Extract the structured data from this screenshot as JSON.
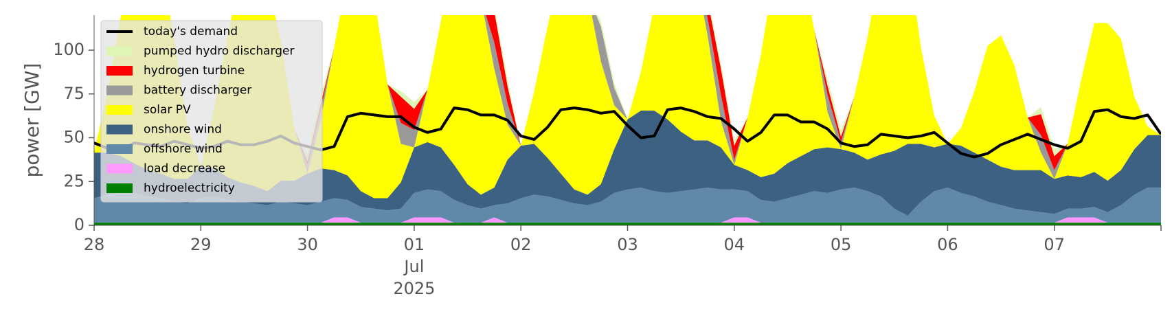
{
  "chart_data": {
    "type": "area",
    "ylabel": "power [GW]",
    "ylim": [
      0,
      120
    ],
    "yticks": [
      0,
      25,
      50,
      75,
      100
    ],
    "xlim": [
      "2025-06-28T00:00",
      "2025-07-08T00:00"
    ],
    "xticks": [
      {
        "x": "2025-06-28T00:00",
        "label": "28"
      },
      {
        "x": "2025-06-29T00:00",
        "label": "29"
      },
      {
        "x": "2025-06-30T00:00",
        "label": "30"
      },
      {
        "x": "2025-07-01T00:00",
        "label": "01",
        "sub1": "Jul",
        "sub2": "2025"
      },
      {
        "x": "2025-07-02T00:00",
        "label": "02"
      },
      {
        "x": "2025-07-03T00:00",
        "label": "03"
      },
      {
        "x": "2025-07-04T00:00",
        "label": "04"
      },
      {
        "x": "2025-07-05T00:00",
        "label": "05"
      },
      {
        "x": "2025-07-06T00:00",
        "label": "06"
      },
      {
        "x": "2025-07-07T00:00",
        "label": "07"
      }
    ],
    "grid": false,
    "legend_position": "top-left",
    "stack_order": [
      "hydroelectricity",
      "load decrease",
      "offshore wind",
      "onshore wind",
      "solar PV",
      "battery discharger",
      "hydrogen turbine",
      "pumped hydro discharger"
    ],
    "x": [
      "2025-06-28T00:00",
      "2025-06-28T03:00",
      "2025-06-28T06:00",
      "2025-06-28T09:00",
      "2025-06-28T12:00",
      "2025-06-28T15:00",
      "2025-06-28T18:00",
      "2025-06-28T21:00",
      "2025-06-29T00:00",
      "2025-06-29T03:00",
      "2025-06-29T06:00",
      "2025-06-29T09:00",
      "2025-06-29T12:00",
      "2025-06-29T15:00",
      "2025-06-29T18:00",
      "2025-06-29T21:00",
      "2025-06-30T00:00",
      "2025-06-30T03:00",
      "2025-06-30T06:00",
      "2025-06-30T09:00",
      "2025-06-30T12:00",
      "2025-06-30T15:00",
      "2025-06-30T18:00",
      "2025-06-30T21:00",
      "2025-07-01T00:00",
      "2025-07-01T03:00",
      "2025-07-01T06:00",
      "2025-07-01T09:00",
      "2025-07-01T12:00",
      "2025-07-01T15:00",
      "2025-07-01T18:00",
      "2025-07-01T21:00",
      "2025-07-02T00:00",
      "2025-07-02T03:00",
      "2025-07-02T06:00",
      "2025-07-02T09:00",
      "2025-07-02T12:00",
      "2025-07-02T15:00",
      "2025-07-02T18:00",
      "2025-07-02T21:00",
      "2025-07-03T00:00",
      "2025-07-03T03:00",
      "2025-07-03T06:00",
      "2025-07-03T09:00",
      "2025-07-03T12:00",
      "2025-07-03T15:00",
      "2025-07-03T18:00",
      "2025-07-03T21:00",
      "2025-07-04T00:00",
      "2025-07-04T03:00",
      "2025-07-04T06:00",
      "2025-07-04T09:00",
      "2025-07-04T12:00",
      "2025-07-04T15:00",
      "2025-07-04T18:00",
      "2025-07-04T21:00",
      "2025-07-05T00:00",
      "2025-07-05T03:00",
      "2025-07-05T06:00",
      "2025-07-05T09:00",
      "2025-07-05T12:00",
      "2025-07-05T15:00",
      "2025-07-05T18:00",
      "2025-07-05T21:00",
      "2025-07-06T00:00",
      "2025-07-06T03:00",
      "2025-07-06T06:00",
      "2025-07-06T09:00",
      "2025-07-06T12:00",
      "2025-07-06T15:00",
      "2025-07-06T18:00",
      "2025-07-06T21:00",
      "2025-07-07T00:00",
      "2025-07-07T03:00",
      "2025-07-07T06:00",
      "2025-07-07T09:00",
      "2025-07-07T12:00",
      "2025-07-07T15:00",
      "2025-07-07T18:00",
      "2025-07-07T21:00",
      "2025-07-08T00:00"
    ],
    "series": [
      {
        "name": "hydroelectricity",
        "color": "#008000",
        "values": [
          1.5,
          1.5,
          1.5,
          1.5,
          1.5,
          1.5,
          1.5,
          1.5,
          1.5,
          1.5,
          1.5,
          1.5,
          1.5,
          1.5,
          1.5,
          1.5,
          1.5,
          1.5,
          1.5,
          1.5,
          1.5,
          1.5,
          1.5,
          1.5,
          1.5,
          1.5,
          1.5,
          1.5,
          1.5,
          1.5,
          1.5,
          1.5,
          1.5,
          1.5,
          1.5,
          1.5,
          1.5,
          1.5,
          1.5,
          1.5,
          1.5,
          1.5,
          1.5,
          1.5,
          1.5,
          1.5,
          1.5,
          1.5,
          1.5,
          1.5,
          1.5,
          1.5,
          1.5,
          1.5,
          1.5,
          1.5,
          1.5,
          1.5,
          1.5,
          1.5,
          1.5,
          1.5,
          1.5,
          1.5,
          1.5,
          1.5,
          1.5,
          1.5,
          1.5,
          1.5,
          1.5,
          1.5,
          1.5,
          1.5,
          1.5,
          1.5,
          1.5,
          1.5,
          1.5,
          1.5,
          1.5
        ]
      },
      {
        "name": "load decrease",
        "color": "#ff99ff",
        "values": [
          0,
          0,
          0,
          0,
          0,
          0,
          0,
          0,
          0,
          0,
          0,
          0,
          0,
          0,
          0,
          0,
          0,
          0,
          3,
          3,
          0,
          0,
          0,
          0,
          3,
          3,
          3,
          0,
          0,
          0,
          3,
          0,
          0,
          0,
          0,
          0,
          0,
          0,
          0,
          0,
          0,
          0,
          0,
          0,
          0,
          0,
          0,
          0,
          3,
          3,
          0,
          0,
          0,
          0,
          0,
          0,
          0,
          0,
          0,
          0,
          0,
          0,
          0,
          0,
          0,
          0,
          0,
          0,
          0,
          0,
          0,
          0,
          0,
          3,
          3,
          3,
          0,
          0,
          0,
          0,
          0
        ]
      },
      {
        "name": "offshore wind",
        "color": "#6088a8",
        "values": [
          14,
          16,
          18,
          17,
          15,
          14,
          12,
          11,
          14,
          15,
          13,
          12,
          11,
          10,
          12,
          11,
          10,
          12,
          11,
          10,
          9,
          8,
          7,
          8,
          14,
          16,
          15,
          13,
          10,
          8,
          7,
          11,
          14,
          16,
          15,
          13,
          11,
          10,
          12,
          17,
          19,
          20,
          18,
          17,
          18,
          19,
          20,
          19,
          16,
          15,
          13,
          12,
          14,
          16,
          18,
          17,
          19,
          20,
          18,
          15,
          8,
          4,
          12,
          18,
          20,
          17,
          15,
          12,
          10,
          8,
          7,
          6,
          5,
          5,
          5,
          6,
          6,
          10,
          16,
          20,
          20
        ]
      },
      {
        "name": "onshore wind",
        "color": "#3c6182",
        "values": [
          26,
          24,
          20,
          17,
          15,
          14,
          13,
          14,
          18,
          16,
          13,
          11,
          10,
          8,
          12,
          13,
          18,
          19,
          16,
          14,
          9,
          6,
          7,
          15,
          26,
          27,
          25,
          20,
          12,
          8,
          10,
          25,
          30,
          29,
          22,
          15,
          8,
          6,
          10,
          25,
          40,
          44,
          46,
          42,
          34,
          28,
          27,
          24,
          14,
          12,
          13,
          16,
          20,
          22,
          24,
          26,
          23,
          20,
          18,
          24,
          33,
          41,
          33,
          25,
          25,
          27,
          25,
          24,
          22,
          22,
          23,
          24,
          20,
          19,
          18,
          20,
          18,
          20,
          26,
          30,
          30
        ]
      },
      {
        "name": "solar PV",
        "color": "#ffff00",
        "values": [
          0,
          35,
          80,
          120,
          125,
          120,
          80,
          30,
          0,
          35,
          80,
          120,
          125,
          120,
          80,
          30,
          0,
          28,
          70,
          115,
          120,
          115,
          65,
          22,
          0,
          30,
          72,
          116,
          122,
          112,
          68,
          20,
          0,
          30,
          75,
          117,
          122,
          115,
          70,
          25,
          0,
          22,
          60,
          100,
          110,
          100,
          60,
          15,
          0,
          30,
          70,
          115,
          122,
          112,
          68,
          20,
          0,
          32,
          70,
          110,
          118,
          110,
          55,
          18,
          0,
          10,
          35,
          65,
          75,
          60,
          30,
          10,
          0,
          18,
          55,
          85,
          90,
          75,
          30,
          5,
          0
        ]
      },
      {
        "name": "battery discharger",
        "color": "#999999",
        "values": [
          0,
          0,
          0,
          0,
          0,
          0,
          0,
          0,
          0,
          0,
          0,
          0,
          0,
          0,
          0,
          0,
          5,
          6,
          0,
          0,
          0,
          0,
          0,
          12,
          10,
          0,
          0,
          0,
          0,
          0,
          15,
          12,
          0,
          0,
          0,
          0,
          0,
          0,
          20,
          10,
          0,
          0,
          0,
          0,
          0,
          0,
          10,
          15,
          3,
          0,
          0,
          0,
          0,
          0,
          0,
          10,
          4,
          0,
          0,
          0,
          0,
          0,
          0,
          0,
          0,
          0,
          0,
          0,
          0,
          0,
          0,
          10,
          5,
          0,
          0,
          0,
          0,
          0,
          0,
          0,
          0
        ]
      },
      {
        "name": "hydrogen turbine",
        "color": "#ff0000",
        "values": [
          0,
          0,
          0,
          0,
          0,
          0,
          0,
          0,
          0,
          0,
          0,
          0,
          0,
          0,
          0,
          0,
          2,
          3,
          0,
          0,
          0,
          0,
          0,
          15,
          12,
          0,
          0,
          0,
          0,
          0,
          18,
          10,
          0,
          0,
          0,
          0,
          0,
          0,
          0,
          0,
          0,
          0,
          0,
          0,
          0,
          0,
          10,
          15,
          8,
          0,
          0,
          0,
          0,
          0,
          0,
          5,
          3,
          0,
          0,
          0,
          0,
          0,
          0,
          0,
          0,
          0,
          0,
          0,
          0,
          0,
          0,
          12,
          8,
          0,
          0,
          0,
          0,
          0,
          0,
          0,
          0
        ]
      },
      {
        "name": "pumped hydro discharger",
        "color": "#ddf5b5",
        "values": [
          0,
          0,
          0,
          0,
          0,
          0,
          0,
          0,
          0,
          0,
          0,
          0,
          0,
          0,
          0,
          0,
          4,
          5,
          0,
          0,
          0,
          0,
          0,
          3,
          4,
          0,
          0,
          0,
          0,
          0,
          3,
          4,
          0,
          0,
          0,
          0,
          0,
          0,
          3,
          3,
          0,
          0,
          0,
          0,
          0,
          0,
          3,
          3,
          3,
          0,
          0,
          0,
          0,
          0,
          0,
          4,
          4,
          0,
          0,
          0,
          0,
          0,
          0,
          0,
          0,
          0,
          0,
          0,
          0,
          0,
          0,
          4,
          4,
          0,
          0,
          0,
          0,
          0,
          0,
          0,
          0
        ]
      }
    ],
    "demand": {
      "name": "today's demand",
      "color": "#000000",
      "values": [
        47,
        44,
        43,
        47,
        46,
        45,
        48,
        46,
        44,
        45,
        48,
        46,
        46,
        48,
        51,
        47,
        45,
        43,
        45,
        62,
        64,
        63,
        62,
        62,
        56,
        53,
        55,
        67,
        66,
        63,
        63,
        60,
        51,
        49,
        56,
        66,
        67,
        66,
        64,
        65,
        57,
        50,
        51,
        66,
        67,
        65,
        62,
        61,
        55,
        48,
        53,
        63,
        63,
        59,
        59,
        55,
        47,
        45,
        46,
        52,
        51,
        50,
        51,
        53,
        47,
        41,
        39,
        41,
        46,
        49,
        52,
        49,
        46,
        44,
        48,
        65,
        66,
        62,
        61,
        63,
        52
      ]
    },
    "legend": [
      {
        "label": "today's demand",
        "kind": "line",
        "color": "#000000"
      },
      {
        "label": "pumped hydro discharger",
        "kind": "patch",
        "color": "#ddf5b5"
      },
      {
        "label": "hydrogen turbine",
        "kind": "patch",
        "color": "#ff0000"
      },
      {
        "label": "battery discharger",
        "kind": "patch",
        "color": "#999999"
      },
      {
        "label": "solar PV",
        "kind": "patch",
        "color": "#ffff00"
      },
      {
        "label": "onshore wind",
        "kind": "patch",
        "color": "#3c6182"
      },
      {
        "label": "offshore wind",
        "kind": "patch",
        "color": "#6088a8"
      },
      {
        "label": "load decrease",
        "kind": "patch",
        "color": "#ff99ff"
      },
      {
        "label": "hydroelectricity",
        "kind": "patch",
        "color": "#008000"
      }
    ]
  }
}
